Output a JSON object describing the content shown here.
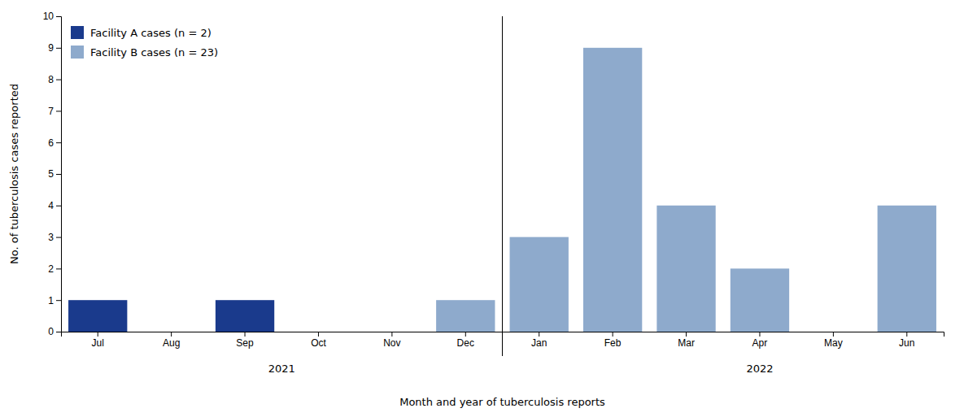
{
  "chart_data": {
    "type": "bar",
    "categories": [
      "Jul",
      "Aug",
      "Sep",
      "Oct",
      "Nov",
      "Dec",
      "Jan",
      "Feb",
      "Mar",
      "Apr",
      "May",
      "Jun"
    ],
    "series": [
      {
        "name": "Facility A cases (n = 2)",
        "color": "#1a3a8c",
        "values": [
          1,
          0,
          1,
          0,
          0,
          0,
          0,
          0,
          0,
          0,
          0,
          0
        ]
      },
      {
        "name": "Facility B cases (n = 23)",
        "color": "#8eaacc",
        "values": [
          0,
          0,
          0,
          0,
          0,
          1,
          3,
          9,
          4,
          2,
          0,
          4
        ]
      }
    ],
    "ylabel": "No. of tuberculosis cases reported",
    "xlabel": "Month and year of tuberculosis reports",
    "ylim": [
      0,
      10
    ],
    "yticks": [
      0,
      1,
      2,
      3,
      4,
      5,
      6,
      7,
      8,
      9,
      10
    ],
    "annotations": [
      {
        "text": "2021",
        "x": 2.5
      },
      {
        "text": "2022",
        "x": 9.0
      }
    ],
    "legend": "upper left",
    "grid": false
  }
}
